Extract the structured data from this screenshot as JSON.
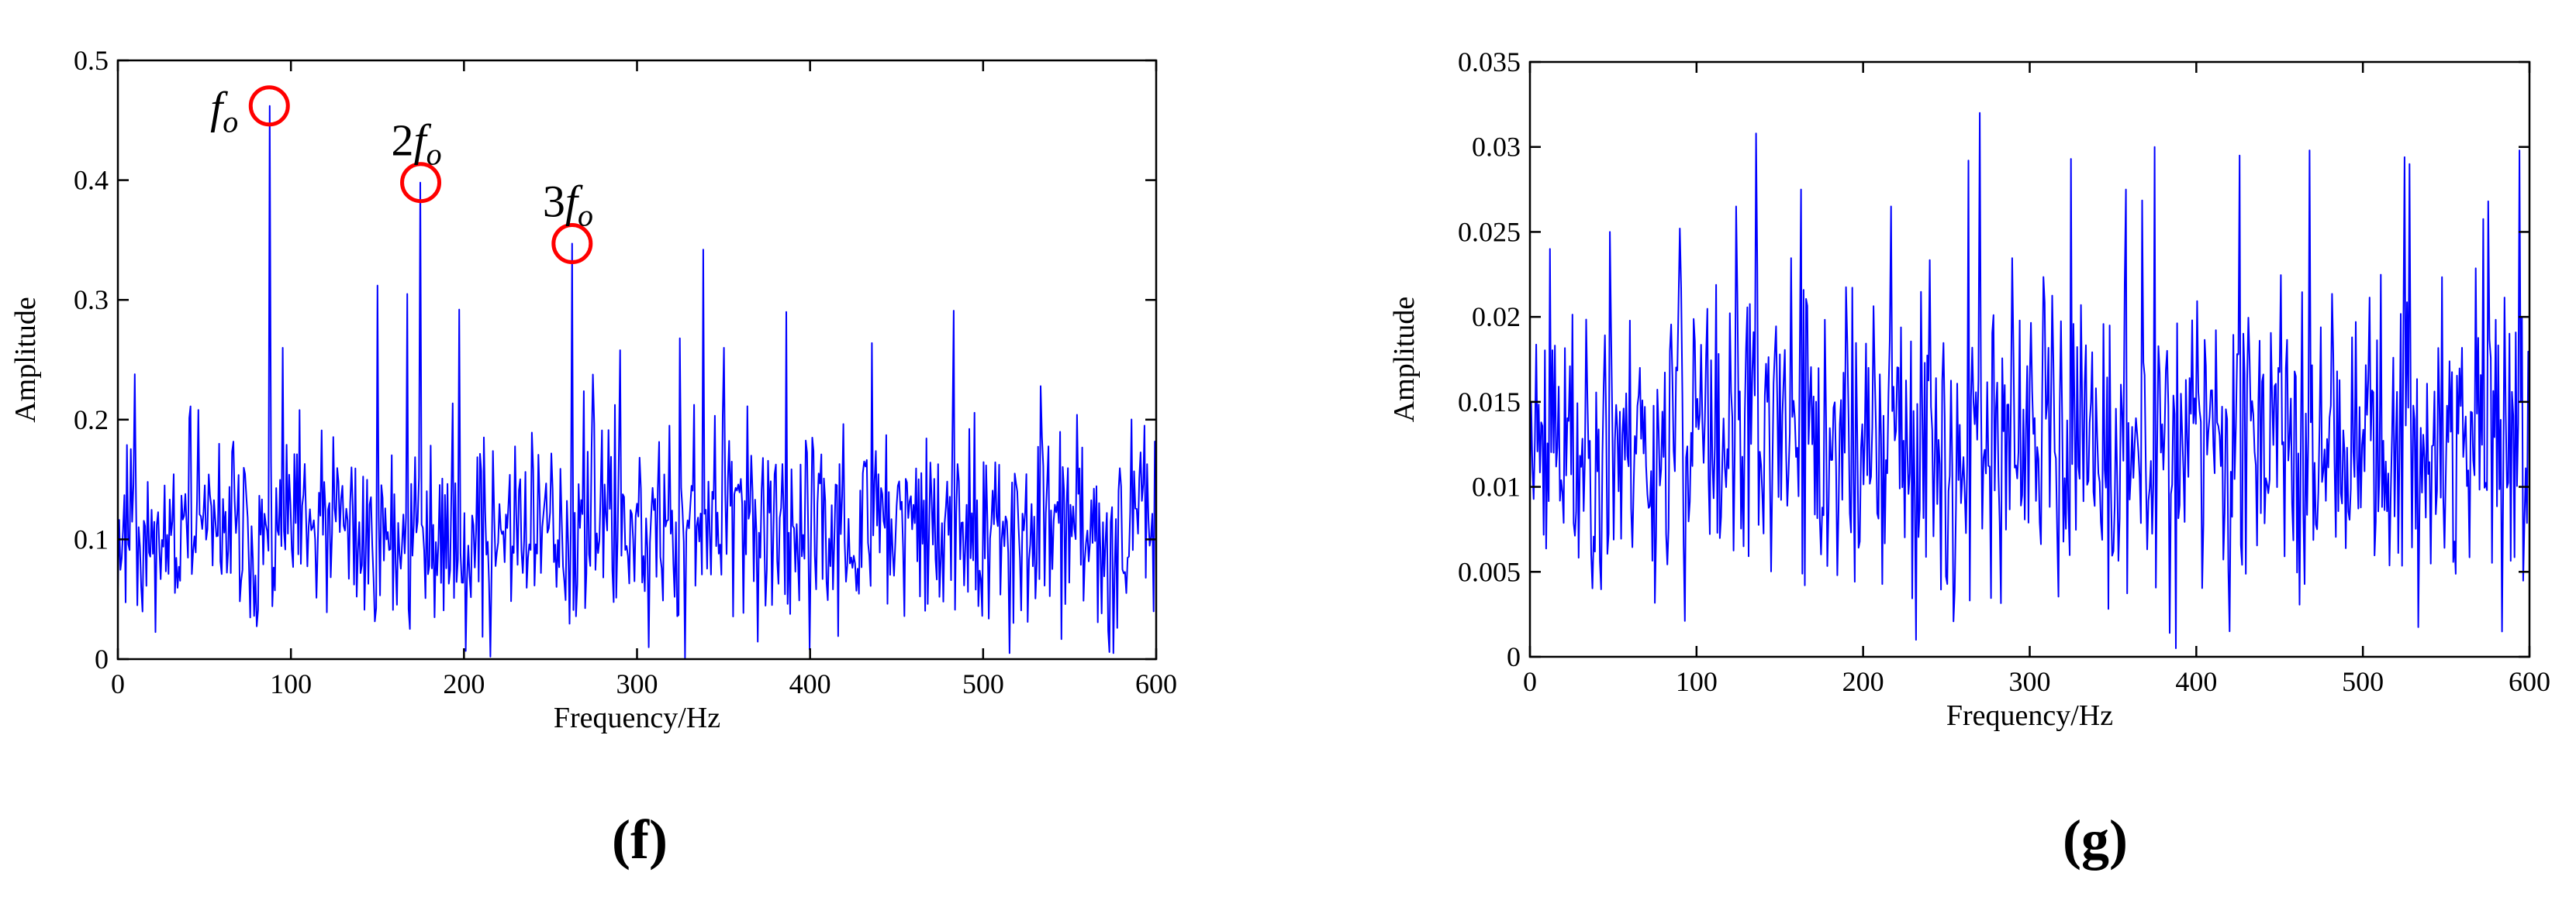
{
  "chart_data": [
    {
      "panel_label": "(f)",
      "type": "line",
      "title": "",
      "xlabel": "Frequency/Hz",
      "ylabel": "Amplitude",
      "xlim": [
        0,
        600
      ],
      "ylim": [
        0,
        0.5
      ],
      "xticks": [
        0,
        100,
        200,
        300,
        400,
        500,
        600
      ],
      "yticks": [
        0,
        0.1,
        0.2,
        0.3,
        0.4,
        0.5
      ],
      "xtick_labels": [
        "0",
        "100",
        "200",
        "300",
        "400",
        "500",
        "600"
      ],
      "ytick_labels": [
        "0",
        "0.1",
        "0.2",
        "0.3",
        "0.4",
        "0.5"
      ],
      "grid": false,
      "series_color": "#0000ff",
      "annotation_color": "#ff0000",
      "noise": {
        "base": 0.105,
        "spread": 0.055,
        "min": 0.005,
        "max": 0.3,
        "seed": 11
      },
      "peaks": [
        {
          "x": 87.5,
          "y": 0.462
        },
        {
          "x": 175,
          "y": 0.398
        },
        {
          "x": 262.5,
          "y": 0.347
        },
        {
          "x": 10,
          "y": 0.238
        },
        {
          "x": 95,
          "y": 0.26
        },
        {
          "x": 150,
          "y": 0.312
        },
        {
          "x": 167,
          "y": 0.305
        },
        {
          "x": 197,
          "y": 0.292
        },
        {
          "x": 290,
          "y": 0.258
        },
        {
          "x": 325,
          "y": 0.268
        },
        {
          "x": 338,
          "y": 0.342
        },
        {
          "x": 350,
          "y": 0.26
        },
        {
          "x": 386,
          "y": 0.29
        },
        {
          "x": 436,
          "y": 0.264
        },
        {
          "x": 483,
          "y": 0.291
        },
        {
          "x": 533,
          "y": 0.228
        },
        {
          "x": 593,
          "y": 0.195
        },
        {
          "x": 215,
          "y": 0.002
        },
        {
          "x": 328,
          "y": 0.001
        },
        {
          "x": 400,
          "y": 0.008
        },
        {
          "x": 515,
          "y": 0.005
        }
      ],
      "annotations": [
        {
          "main": "f",
          "sub": "o",
          "x": 87.5,
          "y": 0.462
        },
        {
          "main": "2f",
          "sub": "o",
          "x": 175,
          "y": 0.398
        },
        {
          "main": "3f",
          "sub": "o",
          "x": 262.5,
          "y": 0.347
        }
      ]
    },
    {
      "panel_label": "(g)",
      "type": "line",
      "title": "",
      "xlabel": "Frequency/Hz",
      "ylabel": "Amplitude",
      "xlim": [
        0,
        600
      ],
      "ylim": [
        0,
        0.035
      ],
      "xticks": [
        0,
        100,
        200,
        300,
        400,
        500,
        600
      ],
      "yticks": [
        0,
        0.005,
        0.01,
        0.015,
        0.02,
        0.025,
        0.03,
        0.035
      ],
      "xtick_labels": [
        "0",
        "100",
        "200",
        "300",
        "400",
        "500",
        "600"
      ],
      "ytick_labels": [
        "0",
        "0.005",
        "0.01",
        "0.015",
        "0.02",
        "0.025",
        "0.03",
        "0.035"
      ],
      "grid": false,
      "series_color": "#0000ff",
      "noise": {
        "base": 0.0125,
        "spread": 0.006,
        "min": 0.0005,
        "max": 0.029,
        "seed": 23
      },
      "peaks": [
        {
          "x": 12,
          "y": 0.024
        },
        {
          "x": 48,
          "y": 0.025
        },
        {
          "x": 90,
          "y": 0.0252
        },
        {
          "x": 124,
          "y": 0.0265
        },
        {
          "x": 136,
          "y": 0.0308
        },
        {
          "x": 163,
          "y": 0.0275
        },
        {
          "x": 217,
          "y": 0.0265
        },
        {
          "x": 263,
          "y": 0.0292
        },
        {
          "x": 270,
          "y": 0.032
        },
        {
          "x": 325,
          "y": 0.0293
        },
        {
          "x": 358,
          "y": 0.0275
        },
        {
          "x": 375,
          "y": 0.03
        },
        {
          "x": 426,
          "y": 0.0295
        },
        {
          "x": 468,
          "y": 0.0298
        },
        {
          "x": 525,
          "y": 0.0294
        },
        {
          "x": 575,
          "y": 0.0268
        },
        {
          "x": 594,
          "y": 0.0298
        },
        {
          "x": 232,
          "y": 0.001
        },
        {
          "x": 388,
          "y": 0.0005
        },
        {
          "x": 420,
          "y": 0.0015
        }
      ]
    }
  ]
}
